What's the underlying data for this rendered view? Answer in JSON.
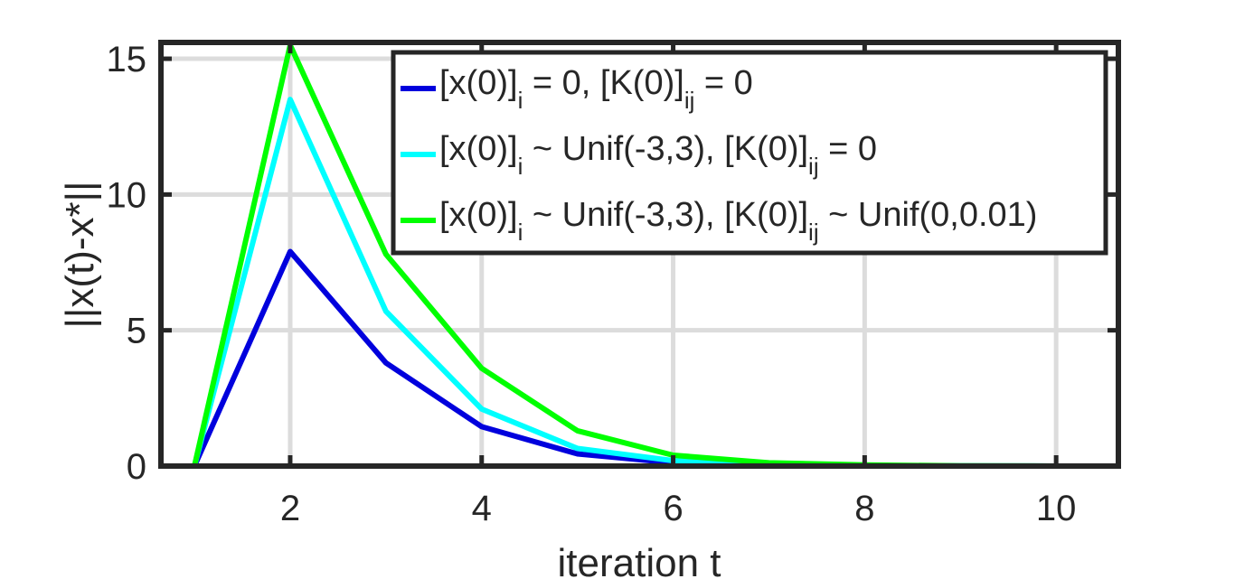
{
  "chart_data": {
    "type": "line",
    "xlabel": "iteration t",
    "ylabel": "||x(t)-x*||",
    "xlim": [
      0.65,
      10.65
    ],
    "ylim": [
      0,
      15.6
    ],
    "xticks": [
      2,
      4,
      6,
      8,
      10
    ],
    "yticks": [
      0,
      5,
      10,
      15
    ],
    "grid": true,
    "legend_position": "top-right",
    "x": [
      1,
      2,
      3,
      4,
      5,
      6,
      7,
      8,
      9,
      10,
      11
    ],
    "series": [
      {
        "name": "[x(0)]_i = 0, [K(0)]_ij = 0",
        "legend_parts": [
          {
            "t": "[x(0)]",
            "sub": false
          },
          {
            "t": "i",
            "sub": true
          },
          {
            "t": " = 0, [K(0)]",
            "sub": false
          },
          {
            "t": "ij",
            "sub": true
          },
          {
            "t": " = 0",
            "sub": false
          }
        ],
        "color": "#0000dd",
        "values": [
          0,
          7.9,
          3.8,
          1.45,
          0.45,
          0.12,
          0.03,
          0.01,
          0,
          0,
          0
        ]
      },
      {
        "name": "[x(0)]_i ~ Unif(-3,3), [K(0)]_ij = 0",
        "legend_parts": [
          {
            "t": "[x(0)]",
            "sub": false
          },
          {
            "t": "i",
            "sub": true
          },
          {
            "t": " ~ Unif(-3,3), [K(0)]",
            "sub": false
          },
          {
            "t": "ij",
            "sub": true
          },
          {
            "t": " = 0",
            "sub": false
          }
        ],
        "color": "#00ffff",
        "values": [
          0,
          13.5,
          5.7,
          2.1,
          0.65,
          0.2,
          0.06,
          0.02,
          0.01,
          0,
          0
        ]
      },
      {
        "name": "[x(0)]_i ~ Unif(-3,3), [K(0)]_ij ~ Unif(0,0.01)",
        "legend_parts": [
          {
            "t": "[x(0)]",
            "sub": false
          },
          {
            "t": "i",
            "sub": true
          },
          {
            "t": " ~ Unif(-3,3), [K(0)]",
            "sub": false
          },
          {
            "t": "ij",
            "sub": true
          },
          {
            "t": " ~ Unif(0,0.01)",
            "sub": false
          }
        ],
        "color": "#00ff00",
        "values": [
          0,
          15.5,
          7.8,
          3.6,
          1.3,
          0.4,
          0.12,
          0.04,
          0.01,
          0,
          0
        ]
      }
    ]
  }
}
